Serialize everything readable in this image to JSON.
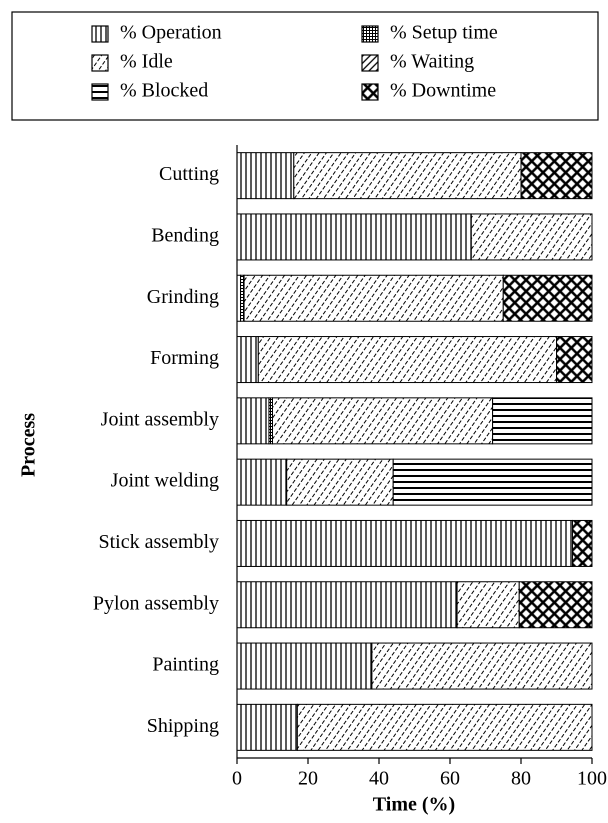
{
  "chart_data": {
    "type": "stacked_barh",
    "categories": [
      "Cutting",
      "Bending",
      "Grinding",
      "Forming",
      "Joint assembly",
      "Joint welding",
      "Stick assembly",
      "Pylon assembly",
      "Painting",
      "Shipping"
    ],
    "series": [
      {
        "name": "% Operation",
        "color": "#000000",
        "pattern": "vertical",
        "values": [
          16,
          66,
          1,
          6,
          9,
          14,
          94.5,
          62,
          38,
          17
        ]
      },
      {
        "name": "% Setup time",
        "color": "#000000",
        "pattern": "grid",
        "values": [
          0,
          0,
          1,
          0,
          1,
          0,
          0,
          0,
          0,
          0
        ]
      },
      {
        "name": "% Idle",
        "color": "#000000",
        "pattern": "dashed-diagonal",
        "values": [
          64,
          34,
          73,
          84,
          62,
          30,
          0,
          17.5,
          62,
          83
        ]
      },
      {
        "name": "% Waiting",
        "color": "#000000",
        "pattern": "diagonal",
        "values": [
          0,
          0,
          0,
          0,
          0,
          0,
          0,
          0,
          0,
          0
        ]
      },
      {
        "name": "% Blocked",
        "color": "#000000",
        "pattern": "horizontal",
        "values": [
          0,
          0,
          0,
          0,
          28,
          56,
          0,
          0,
          0,
          0
        ]
      },
      {
        "name": "% Downtime",
        "color": "#000000",
        "pattern": "crosshatch",
        "values": [
          20,
          0,
          25,
          10,
          0,
          0,
          5.5,
          20.5,
          0,
          0
        ]
      }
    ],
    "xlabel": "Time (%)",
    "ylabel": "Process",
    "xlim": [
      0,
      100
    ],
    "xticks": [
      0,
      20,
      40,
      60,
      80,
      100
    ],
    "legend": "top"
  }
}
